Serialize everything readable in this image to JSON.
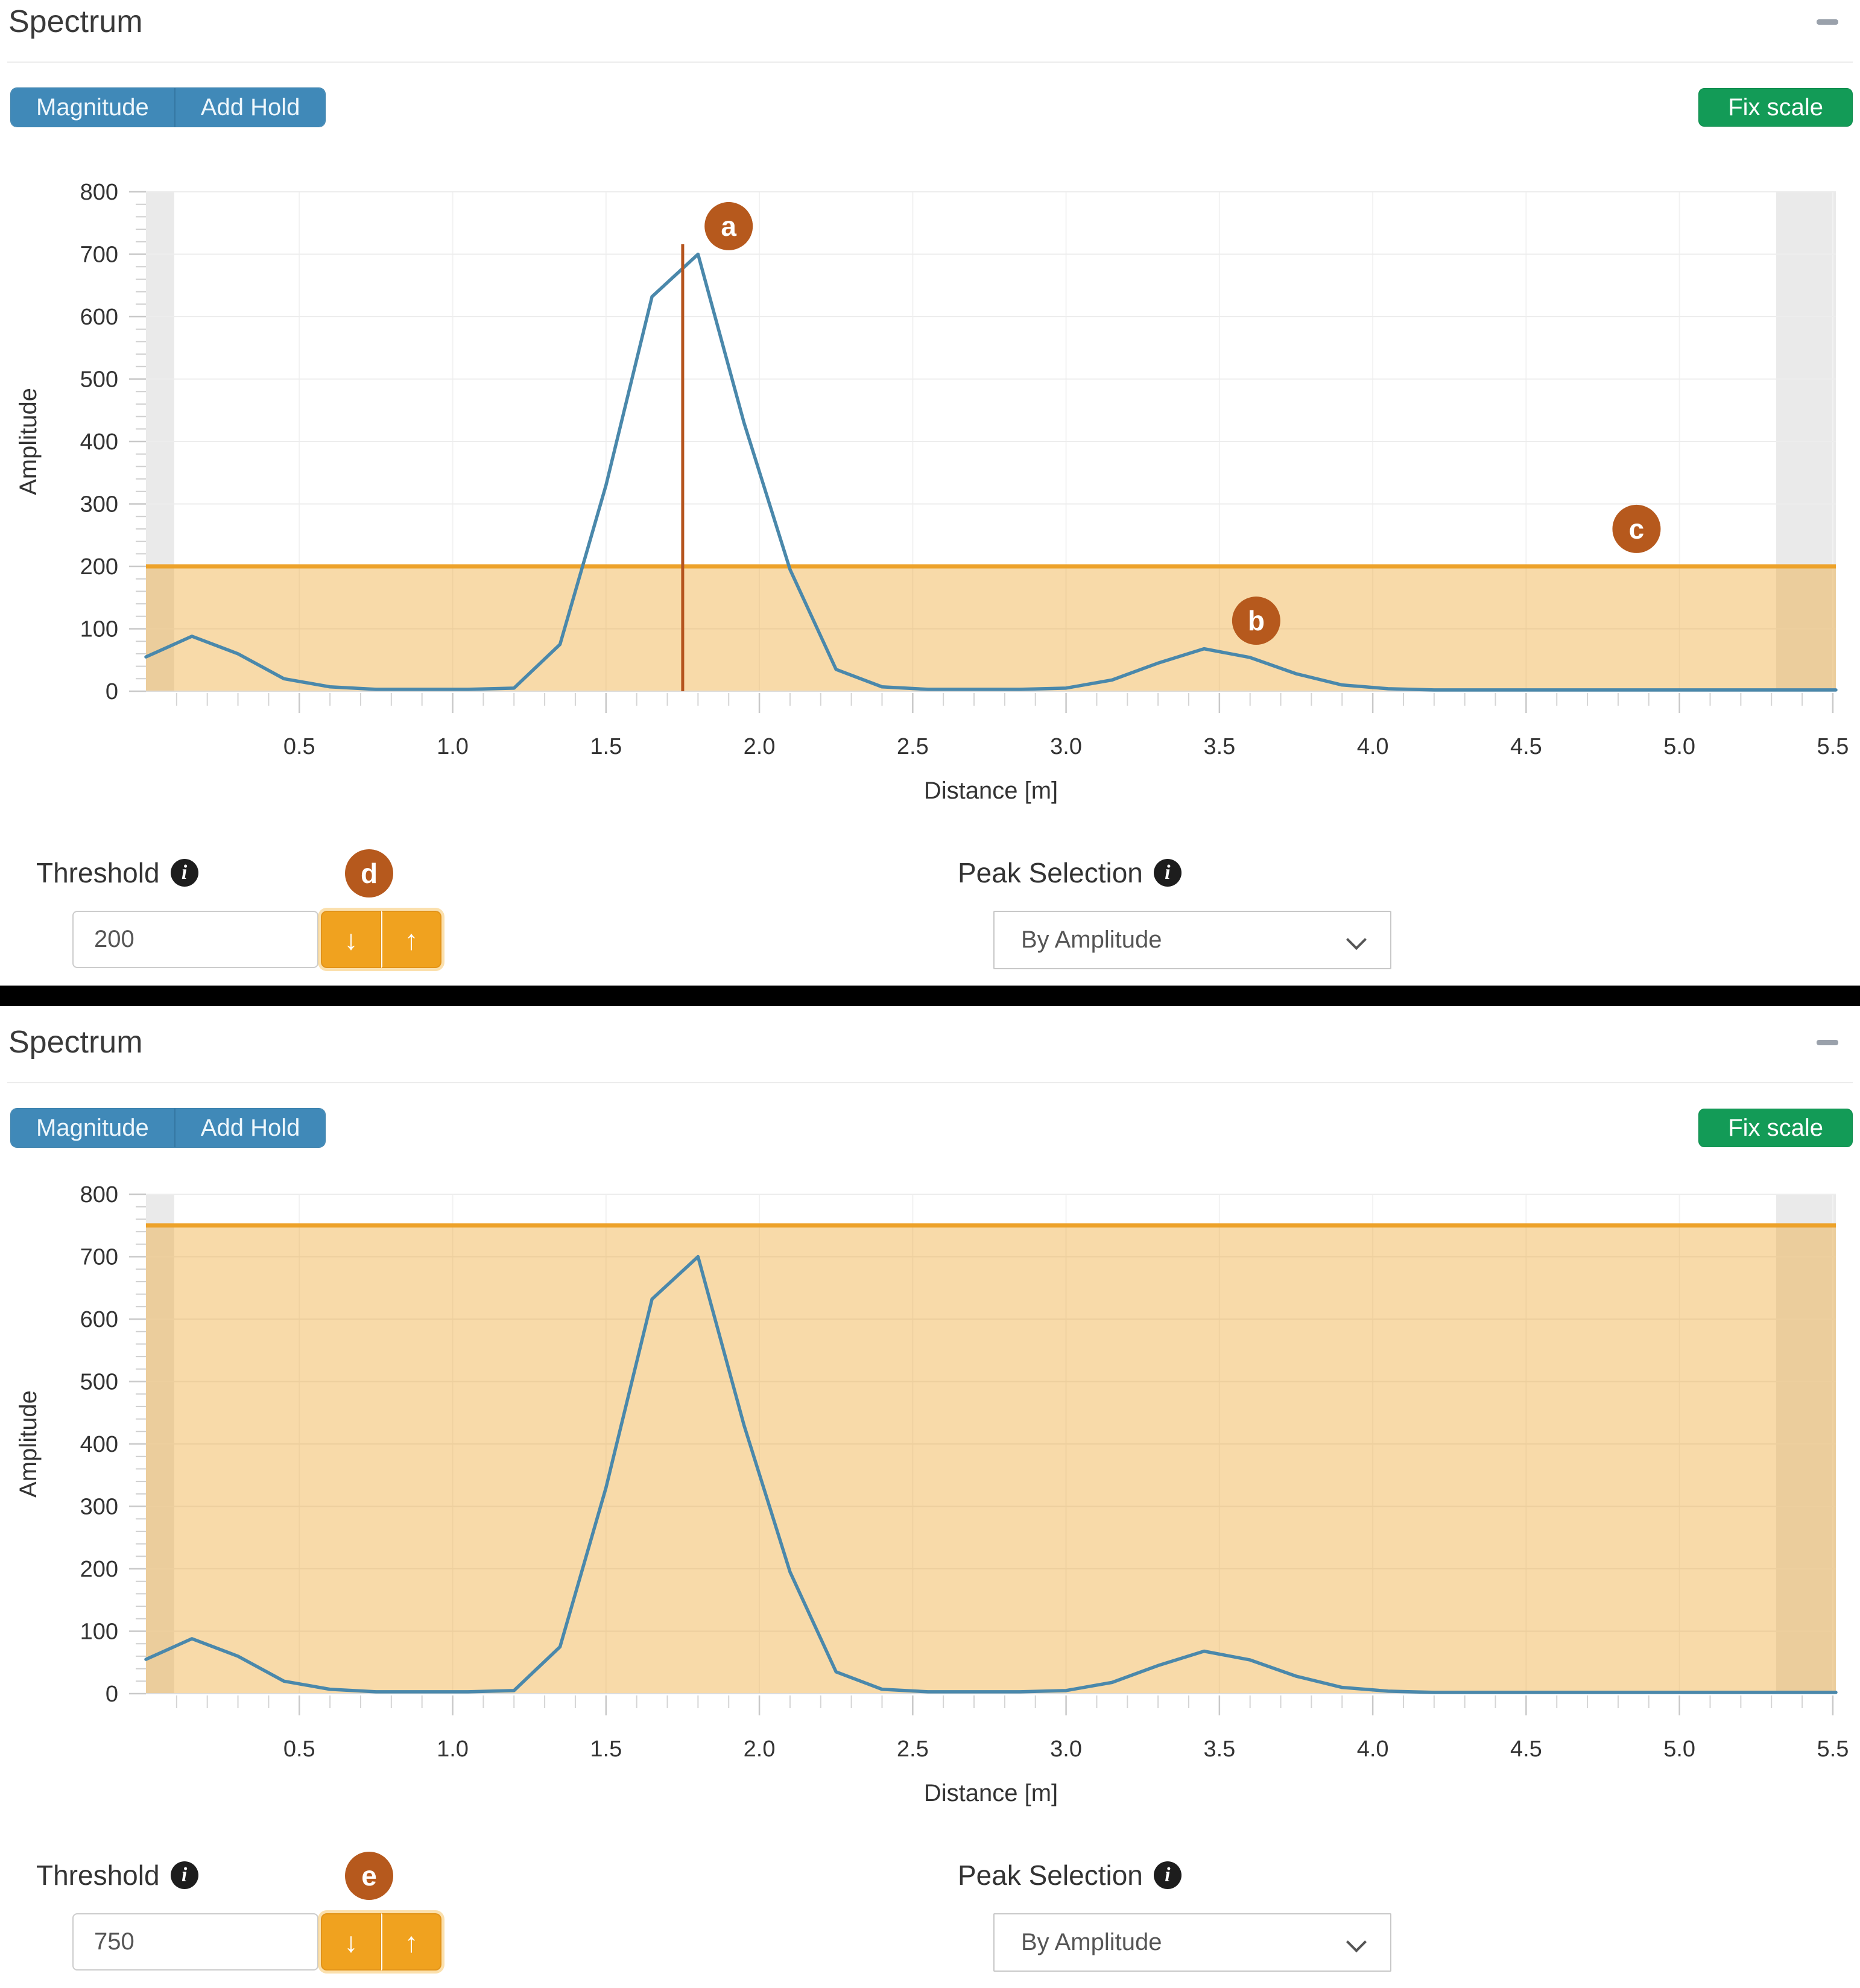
{
  "ui": {
    "colors": {
      "accent_blue": "#4089b8",
      "accent_green": "#139b57",
      "accent_amber": "#f0a21f",
      "threshold_orange": "#eda22a",
      "threshold_fill": "rgba(238,162,40,0.40)",
      "series_blue": "#4a88ab",
      "annotation_rust": "#b6591d",
      "cursor_line": "#b5541e"
    },
    "icons": {
      "collapse": "minus-icon",
      "info": "info-circle-icon",
      "decrease": "arrow-down-icon",
      "increase": "arrow-up-icon",
      "select_caret": "chevron-down-icon"
    },
    "panels": [
      {
        "title": "Spectrum",
        "toolbar": {
          "magnitude": "Magnitude",
          "add_hold": "Add Hold",
          "fix_scale": "Fix scale"
        },
        "threshold": {
          "label": "Threshold",
          "info": "i",
          "value": "200",
          "decrease": "↓",
          "increase": "↑",
          "badge": "d"
        },
        "peak_selection": {
          "label": "Peak Selection",
          "info": "i",
          "value": "By Amplitude"
        }
      },
      {
        "title": "Spectrum",
        "toolbar": {
          "magnitude": "Magnitude",
          "add_hold": "Add Hold",
          "fix_scale": "Fix scale"
        },
        "threshold": {
          "label": "Threshold",
          "info": "i",
          "value": "750",
          "decrease": "↓",
          "increase": "↑",
          "badge": "e"
        },
        "peak_selection": {
          "label": "Peak Selection",
          "info": "i",
          "value": "By Amplitude"
        }
      }
    ]
  },
  "chart_data": [
    {
      "type": "line",
      "title": "Spectrum",
      "xlabel": "Distance [m]",
      "ylabel": "Amplitude",
      "xlim": [
        0,
        5.51
      ],
      "ylim": [
        0,
        800
      ],
      "xticks": [
        "0.5",
        "1.0",
        "1.5",
        "2.0",
        "2.5",
        "3.0",
        "3.5",
        "4.0",
        "4.5",
        "5.0",
        "5.5"
      ],
      "yticks": [
        "0",
        "100",
        "200",
        "300",
        "400",
        "500",
        "600",
        "700",
        "800"
      ],
      "x_minor_step": 0.1,
      "y_minor_step": 20,
      "grid": true,
      "legend": "none",
      "series": [
        {
          "name": "Magnitude",
          "color": "#4a88ab",
          "points": [
            [
              0,
              55
            ],
            [
              0.15,
              88
            ],
            [
              0.3,
              60
            ],
            [
              0.45,
              20
            ],
            [
              0.6,
              7
            ],
            [
              0.75,
              3
            ],
            [
              0.9,
              3
            ],
            [
              1.05,
              3
            ],
            [
              1.2,
              5
            ],
            [
              1.35,
              75
            ],
            [
              1.5,
              330
            ],
            [
              1.65,
              632
            ],
            [
              1.8,
              700
            ],
            [
              1.95,
              430
            ],
            [
              2.1,
              195
            ],
            [
              2.25,
              35
            ],
            [
              2.4,
              7
            ],
            [
              2.55,
              3
            ],
            [
              2.7,
              3
            ],
            [
              2.85,
              3
            ],
            [
              3.0,
              5
            ],
            [
              3.15,
              18
            ],
            [
              3.3,
              45
            ],
            [
              3.45,
              68
            ],
            [
              3.6,
              54
            ],
            [
              3.75,
              28
            ],
            [
              3.9,
              10
            ],
            [
              4.05,
              4
            ],
            [
              4.2,
              2
            ],
            [
              4.5,
              2
            ],
            [
              4.8,
              2
            ],
            [
              5.1,
              2
            ],
            [
              5.3,
              2
            ],
            [
              5.51,
              2
            ]
          ]
        }
      ],
      "threshold": {
        "value": 200,
        "line_color": "#eda22a",
        "fill_color": "rgba(238,162,40,0.40)"
      },
      "cursor_line": {
        "x": 1.75,
        "y_from": 0,
        "y_to": 716,
        "color": "#b5541e"
      },
      "edge_bands": [
        [
          0,
          0.092
        ],
        [
          5.315,
          5.51
        ]
      ],
      "annotations": [
        {
          "label": "a",
          "x": 1.9,
          "y": 745
        },
        {
          "label": "b",
          "x": 3.62,
          "y": 113
        },
        {
          "label": "c",
          "x": 4.86,
          "y": 260
        }
      ]
    },
    {
      "type": "line",
      "title": "Spectrum",
      "xlabel": "Distance [m]",
      "ylabel": "Amplitude",
      "xlim": [
        0,
        5.51
      ],
      "ylim": [
        0,
        800
      ],
      "xticks": [
        "0.5",
        "1.0",
        "1.5",
        "2.0",
        "2.5",
        "3.0",
        "3.5",
        "4.0",
        "4.5",
        "5.0",
        "5.5"
      ],
      "yticks": [
        "0",
        "100",
        "200",
        "300",
        "400",
        "500",
        "600",
        "700",
        "800"
      ],
      "x_minor_step": 0.1,
      "y_minor_step": 20,
      "grid": true,
      "legend": "none",
      "series": [
        {
          "name": "Magnitude",
          "color": "#4a88ab",
          "points": [
            [
              0,
              55
            ],
            [
              0.15,
              88
            ],
            [
              0.3,
              60
            ],
            [
              0.45,
              20
            ],
            [
              0.6,
              7
            ],
            [
              0.75,
              3
            ],
            [
              0.9,
              3
            ],
            [
              1.05,
              3
            ],
            [
              1.2,
              5
            ],
            [
              1.35,
              75
            ],
            [
              1.5,
              330
            ],
            [
              1.65,
              632
            ],
            [
              1.8,
              700
            ],
            [
              1.95,
              430
            ],
            [
              2.1,
              195
            ],
            [
              2.25,
              35
            ],
            [
              2.4,
              7
            ],
            [
              2.55,
              3
            ],
            [
              2.7,
              3
            ],
            [
              2.85,
              3
            ],
            [
              3.0,
              5
            ],
            [
              3.15,
              18
            ],
            [
              3.3,
              45
            ],
            [
              3.45,
              68
            ],
            [
              3.6,
              54
            ],
            [
              3.75,
              28
            ],
            [
              3.9,
              10
            ],
            [
              4.05,
              4
            ],
            [
              4.2,
              2
            ],
            [
              4.5,
              2
            ],
            [
              4.8,
              2
            ],
            [
              5.1,
              2
            ],
            [
              5.3,
              2
            ],
            [
              5.51,
              2
            ]
          ]
        }
      ],
      "threshold": {
        "value": 750,
        "line_color": "#eda22a",
        "fill_color": "rgba(238,162,40,0.40)"
      },
      "cursor_line": null,
      "edge_bands": [
        [
          0,
          0.092
        ],
        [
          5.315,
          5.51
        ]
      ],
      "annotations": []
    }
  ]
}
